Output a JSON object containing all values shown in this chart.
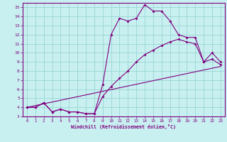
{
  "xlabel": "Windchill (Refroidissement éolien,°C)",
  "bg_color": "#c8f0f0",
  "line_color": "#800080",
  "grid_color": "#a0d8d8",
  "xlim": [
    -0.5,
    23.5
  ],
  "ylim": [
    3,
    15.5
  ],
  "xticks": [
    0,
    1,
    2,
    3,
    4,
    5,
    6,
    7,
    8,
    9,
    10,
    11,
    12,
    13,
    14,
    15,
    16,
    17,
    18,
    19,
    20,
    21,
    22,
    23
  ],
  "yticks": [
    3,
    4,
    5,
    6,
    7,
    8,
    9,
    10,
    11,
    12,
    13,
    14,
    15
  ],
  "line1_x": [
    0,
    1,
    2,
    3,
    4,
    5,
    6,
    7,
    8,
    9,
    10,
    11,
    12,
    13,
    14,
    15,
    16,
    17,
    18,
    19,
    20,
    21,
    22,
    23
  ],
  "line1_y": [
    4.0,
    4.0,
    4.5,
    3.5,
    3.8,
    3.5,
    3.5,
    3.3,
    3.3,
    6.5,
    12.0,
    13.8,
    13.5,
    13.8,
    15.3,
    14.6,
    14.6,
    13.5,
    12.0,
    11.7,
    11.7,
    9.0,
    10.0,
    9.0
  ],
  "line2_x": [
    0,
    1,
    2,
    3,
    4,
    5,
    6,
    7,
    8,
    9,
    10,
    11,
    12,
    13,
    14,
    15,
    16,
    17,
    18,
    19,
    20,
    21,
    22,
    23
  ],
  "line2_y": [
    4.0,
    4.0,
    4.5,
    3.5,
    3.8,
    3.5,
    3.5,
    3.3,
    3.3,
    5.2,
    6.3,
    7.2,
    8.0,
    9.0,
    9.8,
    10.3,
    10.8,
    11.2,
    11.5,
    11.2,
    11.0,
    9.0,
    9.3,
    8.7
  ],
  "line3_x": [
    0,
    23
  ],
  "line3_y": [
    4.0,
    8.5
  ]
}
